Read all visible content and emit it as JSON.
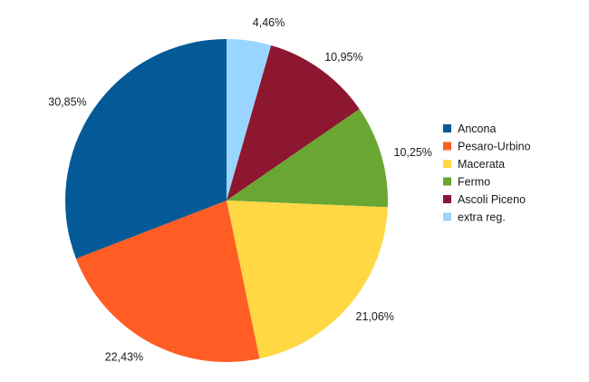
{
  "chart_data": {
    "type": "pie",
    "title": "",
    "slices": [
      {
        "name": "extra reg.",
        "value": 4.46,
        "label": "4,46%",
        "color": "#99d5ff"
      },
      {
        "name": "Ascoli Piceno",
        "value": 10.95,
        "label": "10,95%",
        "color": "#8d1631"
      },
      {
        "name": "Fermo",
        "value": 10.25,
        "label": "10,25%",
        "color": "#6aa632"
      },
      {
        "name": "Macerata",
        "value": 21.06,
        "label": "21,06%",
        "color": "#ffd843"
      },
      {
        "name": "Pesaro-Urbino",
        "value": 22.43,
        "label": "22,43%",
        "color": "#ff5d24"
      },
      {
        "name": "Ancona",
        "value": 30.85,
        "label": "30,85%",
        "color": "#045a96"
      }
    ],
    "legend": {
      "placement": "right",
      "order": [
        "Ancona",
        "Pesaro-Urbino",
        "Macerata",
        "Fermo",
        "Ascoli Piceno",
        "extra reg."
      ]
    }
  }
}
